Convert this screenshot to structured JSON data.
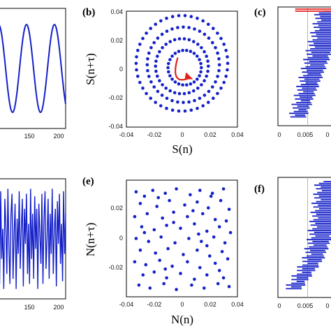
{
  "colors": {
    "series": "#1420c8",
    "arrow": "#e0201c",
    "axis": "#000000",
    "refline": "#9aa0a6"
  },
  "panels": [
    {
      "id": "a",
      "label": "",
      "x_ticks": [
        "150",
        "200"
      ]
    },
    {
      "id": "b",
      "label": "(b)",
      "xlabel": "S(n)",
      "ylabel": "S(n+τ)",
      "x_ticks": [
        "-0.04",
        "-0.02",
        "0",
        "0.02",
        "0.04"
      ],
      "y_ticks": [
        "0.04",
        "0.02",
        "0",
        "-0.02",
        "-0.04"
      ]
    },
    {
      "id": "c",
      "label": "(c)",
      "x_ticks": [
        "0",
        "0.005",
        "0"
      ]
    },
    {
      "id": "d",
      "label": "",
      "x_ticks": [
        "150",
        "200"
      ]
    },
    {
      "id": "e",
      "label": "(e)",
      "xlabel": "N(n)",
      "ylabel": "N(n+τ)",
      "x_ticks": [
        "-0.04",
        "-0.02",
        "0",
        "0.02",
        "0.04"
      ],
      "y_ticks": [
        "0.02",
        "0",
        "-0.02"
      ]
    },
    {
      "id": "f",
      "label": "(f)",
      "x_ticks": [
        "0",
        "0.005",
        "0"
      ]
    }
  ],
  "chart_data": [
    {
      "type": "line",
      "panel": "a",
      "title": "",
      "xlabel": "",
      "ylabel": "",
      "xlim": [
        90,
        210
      ],
      "ylim": [
        -1.3,
        1.3
      ],
      "grid": false,
      "series": [
        {
          "function": "sine",
          "amplitude": 0.95,
          "period": 50,
          "phase_x": 190,
          "x_range": [
            90,
            210
          ]
        }
      ]
    },
    {
      "type": "scatter",
      "panel": "b",
      "title": "",
      "xlabel": "S(n)",
      "ylabel": "S(n+τ)",
      "xlim": [
        -0.04,
        0.04
      ],
      "ylim": [
        -0.04,
        0.04
      ],
      "grid": false,
      "series": [
        {
          "shape": "ring",
          "center": [
            0.0,
            0.004
          ],
          "radius": 0.033,
          "points": 46
        },
        {
          "shape": "ring",
          "center": [
            0.001,
            0.003
          ],
          "radius": 0.026,
          "points": 40
        },
        {
          "shape": "ring",
          "center": [
            0.0,
            0.002
          ],
          "radius": 0.019,
          "points": 34
        },
        {
          "shape": "ring",
          "center": [
            0.002,
            0.001
          ],
          "radius": 0.012,
          "points": 26
        }
      ],
      "annotation": {
        "type": "arrow",
        "start": [
          0.006,
          -0.006
        ],
        "end": [
          -0.003,
          0.008
        ],
        "mid": [
          -0.009,
          0.0
        ]
      }
    },
    {
      "type": "bar",
      "panel": "c",
      "orientation": "horizontal",
      "title": "",
      "xlabel": "",
      "ylabel": "",
      "xlim": [
        0,
        0.0095
      ],
      "grid": false,
      "values": [
        0.0095,
        0.0094,
        0.0093,
        0.0092,
        0.0091,
        0.009,
        0.009,
        0.0089,
        0.0088,
        0.0087,
        0.0086,
        0.0085,
        0.0084,
        0.0083,
        0.0082,
        0.0081,
        0.008,
        0.0079,
        0.0078,
        0.0077,
        0.0076,
        0.0075,
        0.0074,
        0.0073,
        0.0072,
        0.0071,
        0.007,
        0.0069,
        0.0068,
        0.0067,
        0.0066,
        0.0065,
        0.0064,
        0.0063,
        0.0062,
        0.0061,
        0.006,
        0.0059,
        0.0058,
        0.0057,
        0.0056,
        0.0055,
        0.0054,
        0.0053,
        0.0052,
        0.0051,
        0.005,
        0.0049,
        0.0048,
        0.0047,
        0.0046,
        0.0045,
        0.0044,
        0.0043,
        0.0042,
        0.0041,
        0.004,
        0.0039,
        0.0038,
        0.0037
      ],
      "highlight": {
        "values": [
          0.0095,
          0.0095
        ],
        "color": "#e0201c"
      },
      "refline_x": 0.0045
    },
    {
      "type": "line",
      "panel": "d",
      "title": "",
      "xlabel": "",
      "ylabel": "",
      "xlim": [
        90,
        210
      ],
      "ylim": [
        -1.2,
        1.2
      ],
      "grid": false,
      "series": [
        {
          "y": [
            0.6,
            -0.9,
            0.95,
            -0.4,
            0.2,
            -1.0,
            0.8,
            0.3,
            -0.7,
            1.0,
            -0.2,
            -0.9,
            0.5,
            0.9,
            -0.8,
            0.1,
            0.7,
            -1.0,
            0.4,
            -0.3,
            0.95,
            -0.6,
            0.2,
            0.8,
            -0.95,
            0.6,
            -0.1,
            0.9,
            -0.7,
            0.3,
            -0.9,
            1.0,
            -0.4,
            0.5,
            -0.8,
            0.85,
            -0.2,
            0.6,
            -1.0,
            0.7,
            0.1,
            -0.5,
            0.9,
            -0.9,
            0.4,
            0.95,
            -0.6,
            0.0,
            0.8,
            -0.8,
            0.5,
            -0.3,
            1.0,
            -0.7,
            0.2,
            0.6,
            -0.95,
            0.75,
            -0.1,
            0.9,
            -0.5,
            0.3,
            -0.85,
            0.95,
            -0.3,
            0.5
          ],
          "x_range": [
            90,
            210
          ]
        }
      ]
    },
    {
      "type": "scatter",
      "panel": "e",
      "title": "",
      "xlabel": "N(n)",
      "ylabel": "N(n+τ)",
      "xlim": [
        -0.04,
        0.04
      ],
      "ylim": [
        -0.04,
        0.04
      ],
      "grid": false,
      "series": [
        {
          "points": [
            [
              -0.033,
              0.032
            ],
            [
              -0.027,
              0.029
            ],
            [
              -0.021,
              0.033
            ],
            [
              -0.012,
              0.031
            ],
            [
              -0.004,
              0.034
            ],
            [
              0.006,
              0.03
            ],
            [
              0.013,
              0.033
            ],
            [
              0.022,
              0.031
            ],
            [
              0.03,
              0.034
            ],
            [
              -0.03,
              0.024
            ],
            [
              -0.018,
              0.022
            ],
            [
              -0.009,
              0.026
            ],
            [
              0.002,
              0.023
            ],
            [
              0.011,
              0.025
            ],
            [
              0.019,
              0.021
            ],
            [
              0.028,
              0.026
            ],
            [
              0.034,
              0.02
            ],
            [
              -0.034,
              0.015
            ],
            [
              -0.025,
              0.017
            ],
            [
              -0.014,
              0.014
            ],
            [
              -0.006,
              0.018
            ],
            [
              0.004,
              0.015
            ],
            [
              0.015,
              0.017
            ],
            [
              0.024,
              0.013
            ],
            [
              0.032,
              0.012
            ],
            [
              -0.029,
              0.008
            ],
            [
              -0.02,
              0.006
            ],
            [
              -0.011,
              0.009
            ],
            [
              -0.001,
              0.007
            ],
            [
              0.009,
              0.01
            ],
            [
              0.018,
              0.005
            ],
            [
              0.027,
              0.008
            ],
            [
              0.035,
              0.004
            ],
            [
              -0.033,
              0.0
            ],
            [
              -0.024,
              -0.002
            ],
            [
              -0.015,
              0.001
            ],
            [
              -0.005,
              -0.003
            ],
            [
              0.005,
              0.0
            ],
            [
              0.014,
              -0.002
            ],
            [
              0.023,
              0.001
            ],
            [
              0.031,
              -0.003
            ],
            [
              -0.03,
              -0.008
            ],
            [
              -0.019,
              -0.01
            ],
            [
              -0.01,
              -0.007
            ],
            [
              0.001,
              -0.011
            ],
            [
              0.011,
              -0.008
            ],
            [
              0.02,
              -0.012
            ],
            [
              0.029,
              -0.009
            ],
            [
              -0.034,
              -0.016
            ],
            [
              -0.026,
              -0.018
            ],
            [
              -0.016,
              -0.015
            ],
            [
              -0.007,
              -0.019
            ],
            [
              0.004,
              -0.016
            ],
            [
              0.013,
              -0.02
            ],
            [
              0.024,
              -0.017
            ],
            [
              0.033,
              -0.014
            ],
            [
              -0.028,
              -0.025
            ],
            [
              -0.02,
              -0.023
            ],
            [
              -0.011,
              -0.027
            ],
            [
              -0.001,
              -0.024
            ],
            [
              0.009,
              -0.028
            ],
            [
              0.018,
              -0.025
            ],
            [
              0.027,
              -0.022
            ],
            [
              -0.031,
              -0.032
            ],
            [
              -0.023,
              -0.034
            ],
            [
              -0.013,
              -0.031
            ],
            [
              -0.004,
              -0.035
            ],
            [
              0.007,
              -0.032
            ],
            [
              0.016,
              -0.034
            ],
            [
              0.026,
              -0.031
            ],
            [
              0.034,
              -0.033
            ],
            [
              -0.017,
              0.028
            ],
            [
              0.008,
              0.019
            ],
            [
              -0.027,
              0.004
            ],
            [
              0.018,
              -0.005
            ],
            [
              -0.012,
              -0.021
            ],
            [
              0.03,
              -0.027
            ],
            [
              0.021,
              0.029
            ],
            [
              -0.006,
              0.011
            ],
            [
              0.012,
              0.003
            ]
          ]
        }
      ]
    },
    {
      "type": "bar",
      "panel": "f",
      "orientation": "horizontal",
      "title": "",
      "xlabel": "",
      "ylabel": "",
      "xlim": [
        0,
        0.0095
      ],
      "grid": false,
      "values": [
        0.0095,
        0.0094,
        0.0093,
        0.0093,
        0.0092,
        0.0091,
        0.009,
        0.009,
        0.0089,
        0.0088,
        0.0088,
        0.0087,
        0.0086,
        0.0086,
        0.0085,
        0.0084,
        0.0084,
        0.0083,
        0.0082,
        0.0082,
        0.0081,
        0.008,
        0.008,
        0.0079,
        0.0078,
        0.0078,
        0.0077,
        0.0076,
        0.0076,
        0.0075,
        0.0074,
        0.0074,
        0.0073,
        0.0072,
        0.0071,
        0.007,
        0.0069,
        0.0068,
        0.0067,
        0.0066,
        0.0065,
        0.0064,
        0.0063,
        0.0062,
        0.006,
        0.0058,
        0.0056,
        0.0054,
        0.0052,
        0.005,
        0.0048,
        0.0046,
        0.0044,
        0.0042,
        0.004,
        0.0038,
        0.0036,
        0.0034,
        0.0032,
        0.003
      ],
      "refline_x": 0.0045
    }
  ]
}
